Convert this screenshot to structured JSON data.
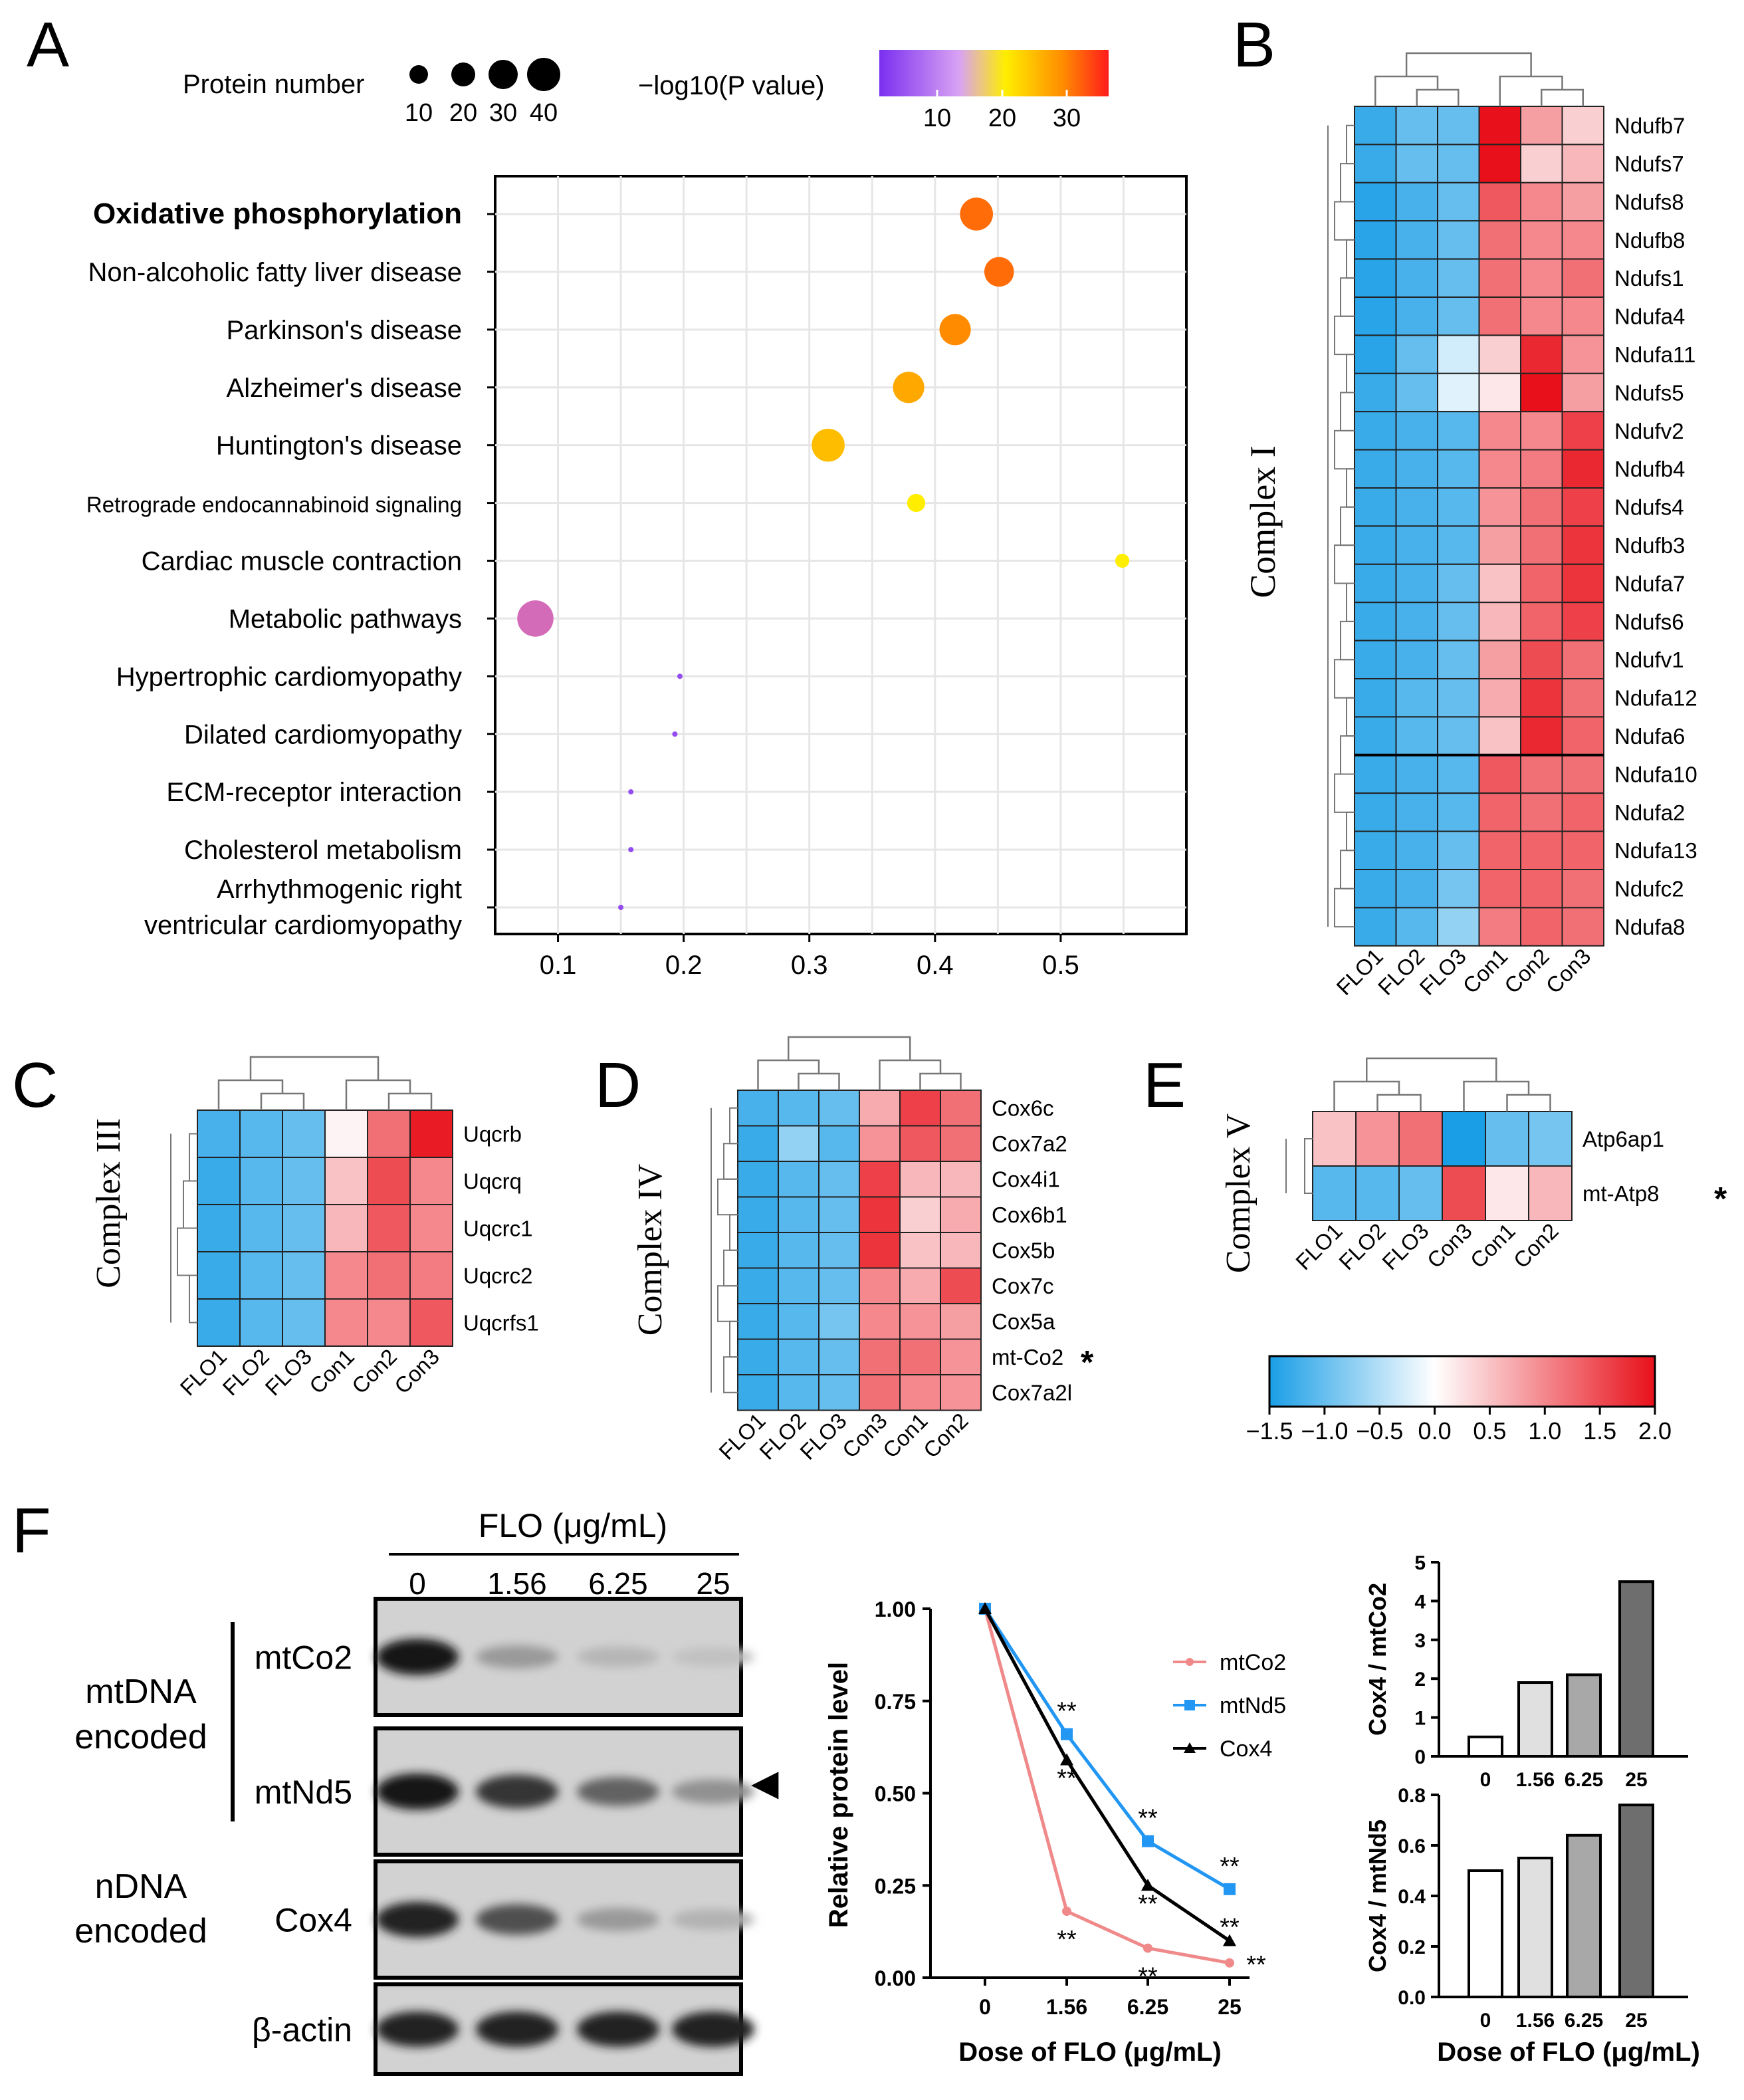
{
  "chart_data": [
    {
      "panel": "A",
      "type": "scatter",
      "size_legend": {
        "title": "Protein number",
        "labels": [
          "10",
          "20",
          "30",
          "40"
        ]
      },
      "color_legend": {
        "title": "−log10(P value)",
        "ticks": [
          "10",
          "20",
          "30"
        ]
      },
      "xticks": [
        "0.1",
        "0.2",
        "0.3",
        "0.4",
        "0.5"
      ],
      "xlim": [
        0.05,
        0.6
      ],
      "pathways": [
        {
          "label": "Oxidative phosphorylation",
          "bold": true,
          "x": 0.433,
          "count": 40,
          "neglogp": 32
        },
        {
          "label": "Non-alcoholic fatty liver disease",
          "bold": false,
          "x": 0.451,
          "count": 36,
          "neglogp": 32
        },
        {
          "label": "Parkinson's disease",
          "bold": false,
          "x": 0.416,
          "count": 38,
          "neglogp": 30
        },
        {
          "label": "Alzheimer's disease",
          "bold": false,
          "x": 0.379,
          "count": 38,
          "neglogp": 27
        },
        {
          "label": "Huntington's disease",
          "bold": false,
          "x": 0.315,
          "count": 40,
          "neglogp": 25
        },
        {
          "label": "Retrograde endocannabinoid signaling",
          "bold": false,
          "small": true,
          "x": 0.385,
          "count": 22,
          "neglogp": 20
        },
        {
          "label": "Cardiac muscle contraction",
          "bold": false,
          "x": 0.549,
          "count": 17,
          "neglogp": 20
        },
        {
          "label": "Metabolic pathways",
          "bold": false,
          "x": 0.082,
          "count": 44,
          "neglogp": 0,
          "color": "#d46bb8"
        },
        {
          "label": "Hypertrophic cardiomyopathy",
          "bold": false,
          "x": 0.197,
          "count": 2,
          "neglogp": 3
        },
        {
          "label": "Dilated cardiomyopathy",
          "bold": false,
          "x": 0.193,
          "count": 2,
          "neglogp": 3
        },
        {
          "label": "ECM-receptor interaction",
          "bold": false,
          "x": 0.158,
          "count": 2,
          "neglogp": 3
        },
        {
          "label": "Cholesterol metabolism",
          "bold": false,
          "x": 0.158,
          "count": 2,
          "neglogp": 3
        },
        {
          "label": [
            "Arrhythmogenic right",
            "ventricular cardiomyopathy"
          ],
          "bold": false,
          "x": 0.15,
          "count": 2,
          "neglogp": 3
        }
      ]
    },
    {
      "panel": "B",
      "type": "heatmap",
      "ylabel": "Complex I",
      "columns": [
        "FLO1",
        "FLO2",
        "FLO3",
        "Con1",
        "Con2",
        "Con3"
      ],
      "rows": [
        "Ndufb7",
        "Ndufs7",
        "Ndufs8",
        "Ndufb8",
        "Ndufs1",
        "Ndufa4",
        "Ndufa11",
        "Ndufs5",
        "Ndufv2",
        "Ndufb4",
        "Ndufs4",
        "Ndufb3",
        "Ndufa7",
        "Ndufs6",
        "Ndufv1",
        "Ndufa12",
        "Ndufa6",
        "Ndufa10",
        "Ndufa2",
        "Ndufa13",
        "Ndufc2",
        "Ndufa8"
      ],
      "values": [
        [
          -1.3,
          -1.0,
          -1.0,
          2.0,
          0.8,
          0.4
        ],
        [
          -1.3,
          -1.0,
          -1.0,
          2.0,
          0.4,
          0.6
        ],
        [
          -1.4,
          -1.2,
          -1.0,
          1.4,
          1.0,
          0.8
        ],
        [
          -1.4,
          -1.2,
          -1.0,
          1.2,
          1.0,
          1.0
        ],
        [
          -1.4,
          -1.2,
          -1.0,
          1.2,
          1.0,
          1.2
        ],
        [
          -1.4,
          -1.2,
          -1.0,
          1.2,
          1.0,
          1.0
        ],
        [
          -1.4,
          -1.0,
          -0.3,
          0.4,
          1.8,
          0.9
        ],
        [
          -1.3,
          -1.0,
          -0.2,
          0.2,
          2.0,
          0.8
        ],
        [
          -1.3,
          -1.2,
          -1.1,
          1.0,
          1.0,
          1.6
        ],
        [
          -1.3,
          -1.2,
          -1.1,
          1.0,
          1.1,
          1.8
        ],
        [
          -1.3,
          -1.2,
          -1.1,
          0.9,
          1.2,
          1.6
        ],
        [
          -1.3,
          -1.2,
          -1.1,
          0.8,
          1.2,
          1.7
        ],
        [
          -1.3,
          -1.2,
          -1.0,
          0.5,
          1.3,
          1.7
        ],
        [
          -1.3,
          -1.2,
          -1.0,
          0.6,
          1.3,
          1.6
        ],
        [
          -1.3,
          -1.2,
          -1.0,
          0.8,
          1.5,
          1.2
        ],
        [
          -1.3,
          -1.1,
          -1.0,
          0.7,
          1.7,
          1.2
        ],
        [
          -1.3,
          -1.1,
          -1.0,
          0.5,
          1.8,
          1.3
        ],
        [
          -1.3,
          -1.2,
          -1.1,
          1.4,
          1.2,
          1.2
        ],
        [
          -1.3,
          -1.2,
          -1.1,
          1.3,
          1.2,
          1.3
        ],
        [
          -1.3,
          -1.2,
          -1.0,
          1.3,
          1.3,
          1.3
        ],
        [
          -1.3,
          -1.2,
          -0.9,
          1.3,
          1.3,
          1.2
        ],
        [
          -1.3,
          -1.1,
          -0.7,
          1.1,
          1.3,
          1.2
        ]
      ],
      "color_scale": {
        "ticks": [
          "−1.5",
          "−1.0",
          "−0.5",
          "0.0",
          "0.5",
          "1.0",
          "1.5",
          "2.0"
        ],
        "range": [
          -1.5,
          2.0
        ]
      }
    },
    {
      "panel": "C",
      "type": "heatmap",
      "ylabel": "Complex III",
      "columns": [
        "FLO1",
        "FLO2",
        "FLO3",
        "Con1",
        "Con2",
        "Con3"
      ],
      "rows": [
        "Uqcrb",
        "Uqcrq",
        "Uqcrc1",
        "Uqcrc2",
        "Uqcrfs1"
      ],
      "values": [
        [
          -1.2,
          -1.1,
          -1.0,
          0.1,
          1.2,
          1.9
        ],
        [
          -1.3,
          -1.1,
          -1.0,
          0.5,
          1.5,
          1.0
        ],
        [
          -1.3,
          -1.1,
          -1.0,
          0.6,
          1.4,
          1.0
        ],
        [
          -1.3,
          -1.1,
          -1.0,
          1.0,
          1.2,
          1.1
        ],
        [
          -1.3,
          -1.1,
          -1.0,
          1.0,
          1.0,
          1.4
        ]
      ]
    },
    {
      "panel": "D",
      "type": "heatmap",
      "ylabel": "Complex IV",
      "columns": [
        "FLO1",
        "FLO2",
        "FLO3",
        "Con3",
        "Con1",
        "Con2"
      ],
      "rows": [
        "Cox6c",
        "Cox7a2",
        "Cox4i1",
        "Cox6b1",
        "Cox5b",
        "Cox7c",
        "Cox5a",
        "mt-Co2",
        "Cox7a2l"
      ],
      "starred": [
        "mt-Co2"
      ],
      "values": [
        [
          -1.2,
          -1.1,
          -1.0,
          0.7,
          1.6,
          1.2
        ],
        [
          -1.3,
          -0.7,
          -1.1,
          0.9,
          1.4,
          1.2
        ],
        [
          -1.3,
          -1.1,
          -1.0,
          1.6,
          0.6,
          0.6
        ],
        [
          -1.3,
          -1.1,
          -1.0,
          1.7,
          0.4,
          0.7
        ],
        [
          -1.3,
          -1.1,
          -1.0,
          1.7,
          0.5,
          0.6
        ],
        [
          -1.3,
          -1.1,
          -1.0,
          1.0,
          0.7,
          1.5
        ],
        [
          -1.3,
          -1.1,
          -0.9,
          1.0,
          0.9,
          0.8
        ],
        [
          -1.3,
          -1.1,
          -1.0,
          1.2,
          1.2,
          0.9
        ],
        [
          -1.3,
          -1.1,
          -1.0,
          1.2,
          1.0,
          0.9
        ]
      ]
    },
    {
      "panel": "E",
      "type": "heatmap",
      "ylabel": "Complex V",
      "columns": [
        "FLO1",
        "FLO2",
        "FLO3",
        "Con3",
        "Con1",
        "Con2"
      ],
      "rows": [
        "Atp6ap1",
        "mt-Atp8"
      ],
      "starred": [
        "mt-Atp8"
      ],
      "values": [
        [
          0.5,
          0.9,
          1.2,
          -1.5,
          -1.0,
          -0.9
        ],
        [
          -1.1,
          -1.1,
          -1.0,
          1.5,
          0.2,
          0.6
        ]
      ]
    },
    {
      "panel": "F",
      "type": "line",
      "title": "",
      "xlabel": "Dose of FLO (μg/mL)",
      "ylabel": "Relative protein level",
      "categories": [
        "0",
        "1.56",
        "6.25",
        "25"
      ],
      "yticks": [
        "0.00",
        "0.25",
        "0.50",
        "0.75",
        "1.00"
      ],
      "ylim": [
        0,
        1
      ],
      "series": [
        {
          "name": "mtCo2",
          "color": "#f08a8a",
          "marker": "circle",
          "values": [
            1.0,
            0.18,
            0.08,
            0.04
          ],
          "sig": [
            "",
            "**",
            "**",
            "**"
          ]
        },
        {
          "name": "mtNd5",
          "color": "#2196f3",
          "marker": "square",
          "values": [
            1.0,
            0.66,
            0.37,
            0.24
          ],
          "sig": [
            "",
            "**",
            "**",
            "**"
          ]
        },
        {
          "name": "Cox4",
          "color": "#000000",
          "marker": "triangle",
          "values": [
            1.0,
            0.59,
            0.25,
            0.1
          ],
          "sig": [
            "",
            "**",
            "**",
            "**"
          ]
        }
      ]
    },
    {
      "panel": "F",
      "type": "bar",
      "ylabel": "Cox4 / mtCo2",
      "categories": [
        "0",
        "1.56",
        "6.25",
        "25"
      ],
      "values": [
        0.5,
        1.9,
        2.1,
        4.5
      ],
      "yticks": [
        "0",
        "1",
        "2",
        "3",
        "4",
        "5"
      ],
      "ylim": [
        0,
        5
      ],
      "colors": [
        "#ffffff",
        "#e0e0e0",
        "#a8a8a8",
        "#6e6e6e"
      ]
    },
    {
      "panel": "F",
      "type": "bar",
      "ylabel": "Cox4 / mtNd5",
      "xlabel": "Dose of FLO (μg/mL)",
      "categories": [
        "0",
        "1.56",
        "6.25",
        "25"
      ],
      "values": [
        0.5,
        0.55,
        0.64,
        0.76
      ],
      "yticks": [
        "0.0",
        "0.2",
        "0.4",
        "0.6",
        "0.8"
      ],
      "ylim": [
        0,
        0.8
      ],
      "colors": [
        "#ffffff",
        "#e0e0e0",
        "#a8a8a8",
        "#6e6e6e"
      ]
    }
  ],
  "panel_labels": [
    "A",
    "B",
    "C",
    "D",
    "E",
    "F"
  ],
  "blot": {
    "treatment_label": "FLO (μg/mL)",
    "doses": [
      "0",
      "1.56",
      "6.25",
      "25"
    ],
    "group_mt_line1": "mtDNA",
    "group_mt_line2": "encoded",
    "group_n_line1": "nDNA",
    "group_n_line2": "encoded",
    "bands": [
      "mtCo2",
      "mtNd5",
      "Cox4",
      "β-actin"
    ],
    "intensities": [
      [
        0.95,
        0.25,
        0.1,
        0.04
      ],
      [
        0.95,
        0.8,
        0.55,
        0.3
      ],
      [
        0.9,
        0.65,
        0.25,
        0.12
      ],
      [
        0.9,
        0.9,
        0.9,
        0.9
      ]
    ],
    "arrow_glyph": "◀"
  },
  "star_glyph": "*",
  "colors": {
    "heat_low": "#1a9ee6",
    "heat_mid": "#ffffff",
    "heat_high": "#e8101a"
  }
}
